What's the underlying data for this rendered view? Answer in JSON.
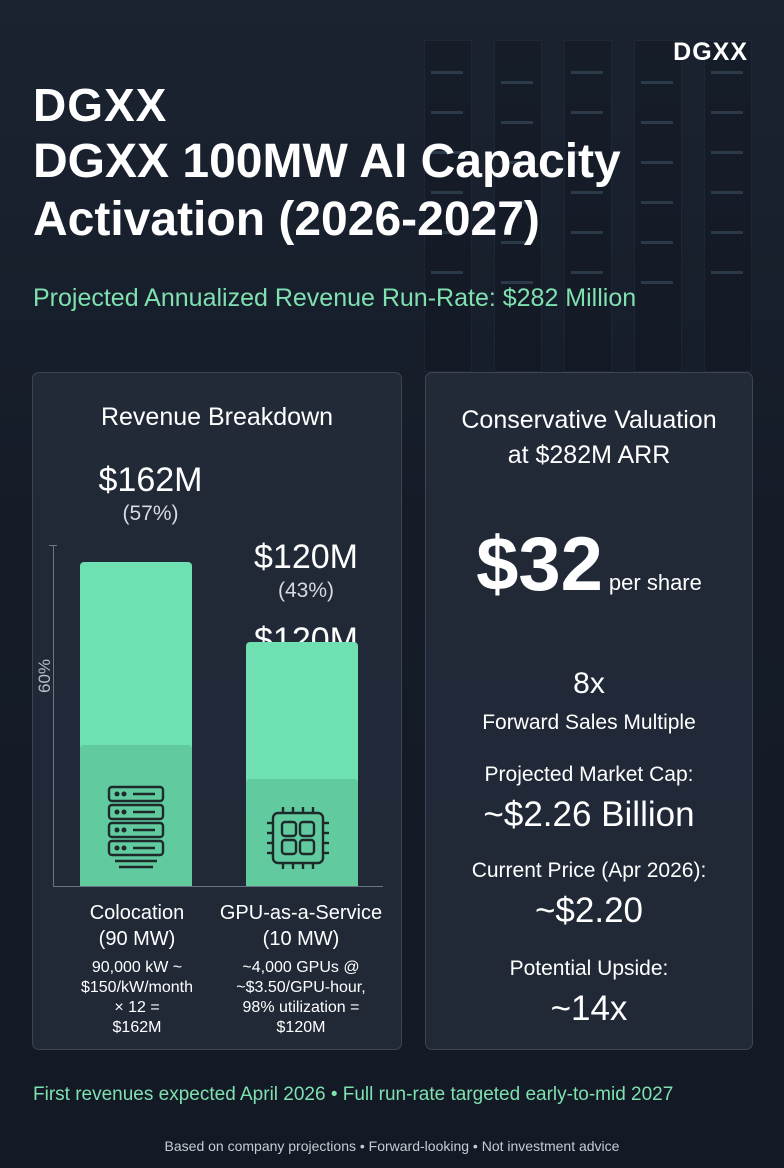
{
  "brand": "DGXX",
  "header": {
    "logo_text": "DGXX",
    "title": "DGXX 100MW AI Capacity Activation (2026-2027)",
    "subtitle": "Projected Annualized Revenue Run-Rate: $282 Million"
  },
  "revenue_breakdown": {
    "title": "Revenue Breakdown",
    "axis_label": "60%",
    "segments": [
      {
        "amount": "$162M",
        "share": "(57%)",
        "share_value": 57,
        "name_line1": "Colocation",
        "name_line2": "(90 MW)",
        "detail": [
          "90,000 kW ~",
          "$150/kW/month",
          "× 12 =",
          "$162M"
        ],
        "icon": "server-rack-icon"
      },
      {
        "amount": "$120M",
        "share": "(43%)",
        "share_value": 43,
        "amount_repeat": "$120M",
        "share_repeat": "(43%)",
        "name_line1": "GPU-as-a-Service",
        "name_line2": "(10 MW)",
        "detail": [
          "~4,000 GPUs @",
          "~$3.50/GPU-hour,",
          "98% utilization =",
          "$120M"
        ],
        "icon": "gpu-chip-icon"
      }
    ]
  },
  "valuation": {
    "title_line1": "Conservative Valuation",
    "title_line2": "at $282M ARR",
    "price_target": "$32",
    "price_unit": "per share",
    "multiple": "8x",
    "multiple_label": "Forward Sales Multiple",
    "market_cap_label": "Projected Market Cap:",
    "market_cap_value": "~$2.26 Billion",
    "current_price_label": "Current Price (Apr 2026):",
    "current_price_value": "~$2.20",
    "upside_label": "Potential Upside:",
    "upside_value": "~14x"
  },
  "footer": {
    "timeline": "First revenues expected April 2026 • Full run-rate targeted early-to-mid 2027",
    "disclaimer": "Based on company projections • Forward-looking • Not investment advice"
  },
  "colors": {
    "accent": "#6ee0b2",
    "accent_text": "#7fe0b0",
    "panel_border": "#3b4556",
    "background": "#161d28"
  }
}
